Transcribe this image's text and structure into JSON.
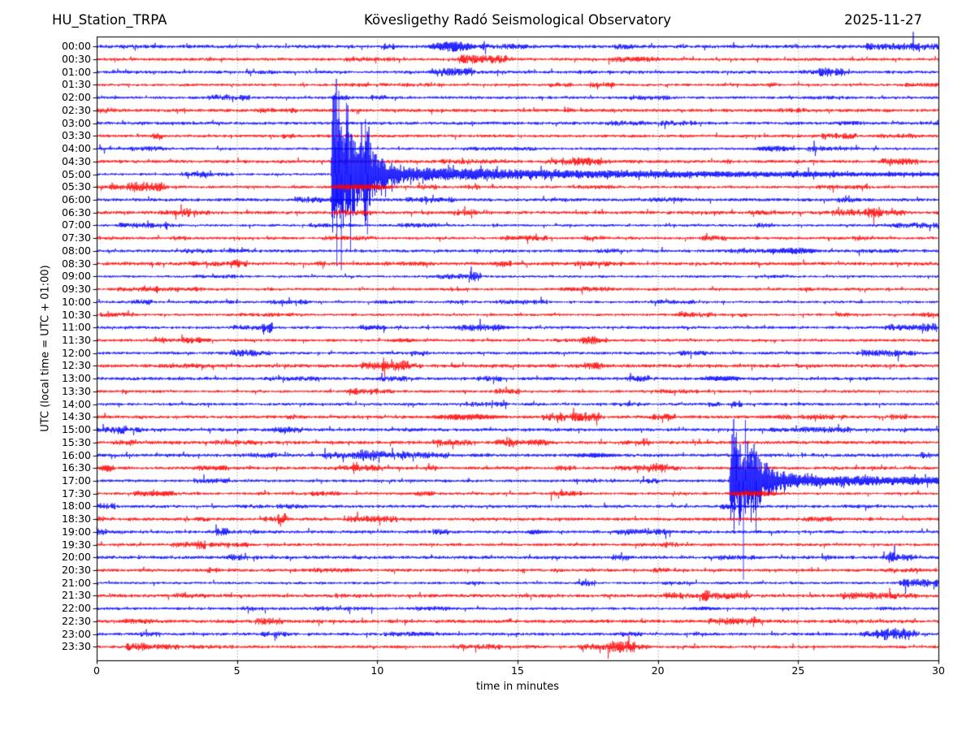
{
  "header": {
    "station": "HU_Station_TRPA",
    "observatory_title": "Kövesligethy Radó Seismological Observatory",
    "date": "2025-11-27"
  },
  "axes": {
    "x_label": "time in minutes",
    "y_label": "UTC (local time = UTC + 01:00)",
    "x_ticks": [
      0,
      5,
      10,
      15,
      20,
      25,
      30
    ],
    "x_range": [
      0,
      30
    ],
    "grid_minutes": [
      5,
      10,
      15,
      20,
      25
    ]
  },
  "colors": {
    "trace_blue": "#0000ff",
    "trace_red": "#ff0000",
    "frame": "#000000",
    "grid": "#555555",
    "background": "#ffffff"
  },
  "chart_data": {
    "type": "line",
    "subtype": "helicorder-dayplot",
    "title": "HU_Station_TRPA — Kövesligethy Radó Seismological Observatory — 2025-11-27",
    "xlabel": "time in minutes",
    "ylabel": "UTC (local time = UTC + 01:00)",
    "xlim": [
      0,
      30
    ],
    "minutes_per_row": 30,
    "grid": "vertical-dotted-5min",
    "rows": [
      {
        "label": "00:00",
        "color": "blue",
        "events": [
          {
            "type": "burst",
            "start": 11.75,
            "end": 13.6,
            "peak_amp": 6.5
          }
        ]
      },
      {
        "label": "00:30",
        "color": "red",
        "events": []
      },
      {
        "label": "01:00",
        "color": "blue",
        "events": []
      },
      {
        "label": "01:30",
        "color": "red",
        "events": []
      },
      {
        "label": "02:00",
        "color": "blue",
        "events": []
      },
      {
        "label": "02:30",
        "color": "red",
        "events": []
      },
      {
        "label": "03:00",
        "color": "blue",
        "events": []
      },
      {
        "label": "03:30",
        "color": "red",
        "events": []
      },
      {
        "label": "04:00",
        "color": "blue",
        "events": [
          {
            "type": "burst",
            "start": 23.3,
            "end": 25.0,
            "peak_amp": 3.5
          }
        ]
      },
      {
        "label": "04:30",
        "color": "red",
        "events": []
      },
      {
        "label": "05:00",
        "color": "blue",
        "events": [
          {
            "type": "earthquake",
            "start": 8.35,
            "peak_amp": 105,
            "spike_end": 10.2,
            "coda_amp": 8,
            "boost": [
              9.5,
              9.8,
              1.8
            ],
            "extremes": [
              [
                8.5,
                -100
              ],
              [
                8.56,
                113
              ],
              [
                8.63,
                -103
              ],
              [
                8.72,
                118
              ],
              [
                8.9,
                -88
              ],
              [
                9.05,
                96
              ],
              [
                9.58,
                -68
              ],
              [
                9.65,
                74
              ]
            ]
          }
        ]
      },
      {
        "label": "05:30",
        "color": "red",
        "events": [
          {
            "type": "saturated",
            "start": 8.2,
            "end": 10.6,
            "peak_amp": 3.8
          }
        ]
      },
      {
        "label": "06:00",
        "color": "blue",
        "events": []
      },
      {
        "label": "06:30",
        "color": "red",
        "events": []
      },
      {
        "label": "07:00",
        "color": "blue",
        "events": []
      },
      {
        "label": "07:30",
        "color": "red",
        "events": []
      },
      {
        "label": "08:00",
        "color": "blue",
        "events": [
          {
            "type": "burst",
            "start": 23.8,
            "end": 25.9,
            "peak_amp": 4
          }
        ]
      },
      {
        "label": "08:30",
        "color": "red",
        "events": []
      },
      {
        "label": "09:00",
        "color": "blue",
        "events": []
      },
      {
        "label": "09:30",
        "color": "red",
        "events": []
      },
      {
        "label": "10:00",
        "color": "blue",
        "events": []
      },
      {
        "label": "10:30",
        "color": "red",
        "events": []
      },
      {
        "label": "11:00",
        "color": "blue",
        "events": []
      },
      {
        "label": "11:30",
        "color": "red",
        "events": [
          {
            "type": "burst",
            "start": 10.4,
            "end": 11.5,
            "peak_amp": 2.8
          }
        ]
      },
      {
        "label": "12:00",
        "color": "blue",
        "events": []
      },
      {
        "label": "12:30",
        "color": "red",
        "events": []
      },
      {
        "label": "13:00",
        "color": "blue",
        "events": [
          {
            "type": "burst",
            "start": 21.4,
            "end": 23.2,
            "peak_amp": 3.5
          }
        ]
      },
      {
        "label": "13:30",
        "color": "red",
        "events": []
      },
      {
        "label": "14:00",
        "color": "blue",
        "events": []
      },
      {
        "label": "14:30",
        "color": "red",
        "events": [
          {
            "type": "burst",
            "start": 11.7,
            "end": 14.6,
            "peak_amp": 4
          }
        ]
      },
      {
        "label": "15:00",
        "color": "blue",
        "events": []
      },
      {
        "label": "15:30",
        "color": "red",
        "events": []
      },
      {
        "label": "16:00",
        "color": "blue",
        "events": [
          {
            "type": "burst",
            "start": 16.8,
            "end": 18.7,
            "peak_amp": 3
          }
        ]
      },
      {
        "label": "16:30",
        "color": "red",
        "events": [
          {
            "type": "burst",
            "start": 0.05,
            "end": 0.7,
            "peak_amp": 5
          },
          {
            "type": "burst",
            "start": 4.3,
            "end": 4.6,
            "peak_amp": 3
          }
        ]
      },
      {
        "label": "17:00",
        "color": "blue",
        "events": [
          {
            "type": "earthquake",
            "start": 22.55,
            "peak_amp": 68,
            "spike_end": 24.3,
            "coda_amp": 6,
            "boost": [
              23.3,
              23.6,
              1.5
            ],
            "extremes": [
              [
                22.8,
                -60
              ],
              [
                22.9,
                55
              ],
              [
                23.05,
                122
              ],
              [
                23.12,
                -75
              ],
              [
                23.5,
                65
              ]
            ]
          }
        ]
      },
      {
        "label": "17:30",
        "color": "red",
        "events": [
          {
            "type": "burst",
            "start": 1.8,
            "end": 2.9,
            "peak_amp": 3
          },
          {
            "type": "saturated",
            "start": 22.5,
            "end": 24.3,
            "peak_amp": 3.8
          }
        ]
      },
      {
        "label": "18:00",
        "color": "blue",
        "events": []
      },
      {
        "label": "18:30",
        "color": "red",
        "events": []
      },
      {
        "label": "19:00",
        "color": "blue",
        "events": [
          {
            "type": "burst",
            "start": 15.2,
            "end": 16.0,
            "peak_amp": 3
          }
        ]
      },
      {
        "label": "19:30",
        "color": "red",
        "events": []
      },
      {
        "label": "20:00",
        "color": "blue",
        "events": []
      },
      {
        "label": "20:30",
        "color": "red",
        "events": []
      },
      {
        "label": "21:00",
        "color": "blue",
        "events": []
      },
      {
        "label": "21:30",
        "color": "red",
        "events": []
      },
      {
        "label": "22:00",
        "color": "blue",
        "events": [
          {
            "type": "burst",
            "start": 21.0,
            "end": 22.3,
            "peak_amp": 2.5
          }
        ]
      },
      {
        "label": "22:30",
        "color": "red",
        "events": []
      },
      {
        "label": "23:00",
        "color": "blue",
        "events": []
      },
      {
        "label": "23:30",
        "color": "red",
        "events": []
      }
    ]
  }
}
